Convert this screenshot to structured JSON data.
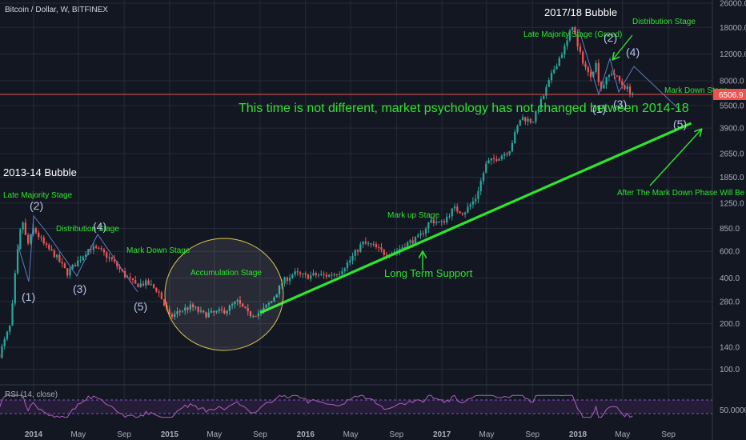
{
  "header": {
    "title": "Bitcoin / Dollar, W, BITFINEX"
  },
  "rsi_label": "RSI (14, close)",
  "chart_data": {
    "type": "candlestick",
    "title": "Bitcoin / Dollar, W, BITFINEX",
    "y_scale": "log",
    "ylim": [
      82,
      26000
    ],
    "y_ticks": [
      {
        "value": 26000,
        "label": "26000.0"
      },
      {
        "value": 18000,
        "label": "18000.0"
      },
      {
        "value": 12000,
        "label": "12000.0"
      },
      {
        "value": 8000,
        "label": "8000.0"
      },
      {
        "value": 5500,
        "label": "5500.0"
      },
      {
        "value": 3900,
        "label": "3900.0"
      },
      {
        "value": 2650,
        "label": "2650.0"
      },
      {
        "value": 1850,
        "label": "1850.0"
      },
      {
        "value": 1250,
        "label": "1250.0"
      },
      {
        "value": 850,
        "label": "850.0"
      },
      {
        "value": 600,
        "label": "600.0"
      },
      {
        "value": 400,
        "label": "400.0"
      },
      {
        "value": 280,
        "label": "280.0"
      },
      {
        "value": 200,
        "label": "200.0"
      },
      {
        "value": 140,
        "label": "140.0"
      },
      {
        "value": 100,
        "label": "100.0"
      }
    ],
    "x_ticks": [
      {
        "date": "2014-01",
        "label": "2014"
      },
      {
        "date": "2014-05",
        "label": "May"
      },
      {
        "date": "2014-09",
        "label": "Sep"
      },
      {
        "date": "2015-01",
        "label": "2015"
      },
      {
        "date": "2015-05",
        "label": "May"
      },
      {
        "date": "2015-09",
        "label": "Sep"
      },
      {
        "date": "2016-01",
        "label": "2016"
      },
      {
        "date": "2016-05",
        "label": "May"
      },
      {
        "date": "2016-09",
        "label": "Sep"
      },
      {
        "date": "2017-01",
        "label": "2017"
      },
      {
        "date": "2017-05",
        "label": "May"
      },
      {
        "date": "2017-09",
        "label": "Sep"
      },
      {
        "date": "2018-01",
        "label": "2018"
      },
      {
        "date": "2018-05",
        "label": "May"
      },
      {
        "date": "2018-09",
        "label": "Sep"
      }
    ],
    "last_price": {
      "value": 6506.9,
      "label": "6506.9",
      "color": "#ef5350"
    },
    "price_path": [
      [
        "2013-10",
        125
      ],
      [
        "2013-11",
        200
      ],
      [
        "2013-11-15",
        500
      ],
      [
        "2013-12",
        1000
      ],
      [
        "2013-12-15",
        650
      ],
      [
        "2014-01",
        850
      ],
      [
        "2014-02",
        650
      ],
      [
        "2014-03",
        560
      ],
      [
        "2014-04",
        430
      ],
      [
        "2014-05",
        520
      ],
      [
        "2014-06",
        640
      ],
      [
        "2014-07",
        600
      ],
      [
        "2014-08",
        520
      ],
      [
        "2014-09",
        420
      ],
      [
        "2014-10",
        360
      ],
      [
        "2014-11",
        370
      ],
      [
        "2014-12",
        330
      ],
      [
        "2015-01",
        220
      ],
      [
        "2015-02",
        245
      ],
      [
        "2015-03",
        260
      ],
      [
        "2015-04",
        230
      ],
      [
        "2015-05",
        235
      ],
      [
        "2015-06",
        245
      ],
      [
        "2015-07",
        280
      ],
      [
        "2015-08",
        230
      ],
      [
        "2015-09",
        236
      ],
      [
        "2015-10",
        280
      ],
      [
        "2015-11",
        380
      ],
      [
        "2015-12",
        430
      ],
      [
        "2016-01",
        410
      ],
      [
        "2016-02",
        420
      ],
      [
        "2016-03",
        415
      ],
      [
        "2016-04",
        440
      ],
      [
        "2016-05",
        530
      ],
      [
        "2016-06",
        680
      ],
      [
        "2016-07",
        650
      ],
      [
        "2016-08",
        580
      ],
      [
        "2016-09",
        605
      ],
      [
        "2016-10",
        680
      ],
      [
        "2016-11",
        740
      ],
      [
        "2016-12",
        960
      ],
      [
        "2017-01",
        920
      ],
      [
        "2017-02",
        1150
      ],
      [
        "2017-03",
        1080
      ],
      [
        "2017-04",
        1340
      ],
      [
        "2017-05",
        2300
      ],
      [
        "2017-06",
        2500
      ],
      [
        "2017-07",
        2800
      ],
      [
        "2017-08",
        4600
      ],
      [
        "2017-09",
        4300
      ],
      [
        "2017-10",
        6400
      ],
      [
        "2017-11",
        10000
      ],
      [
        "2017-12",
        14000
      ],
      [
        "2017-12-18",
        19000
      ],
      [
        "2018-01",
        13000
      ],
      [
        "2018-02",
        8500
      ],
      [
        "2018-02-20",
        10500
      ],
      [
        "2018-03",
        7000
      ],
      [
        "2018-04",
        9200
      ],
      [
        "2018-05",
        7500
      ],
      [
        "2018-06",
        6500
      ]
    ],
    "support_line": {
      "start": [
        "2015-09",
        236
      ],
      "end": [
        "2018-11",
        4200
      ]
    },
    "rsi": {
      "overbought": 70,
      "oversold": 30,
      "value_label": "50.0000"
    },
    "annotations": [
      {
        "text": "2013-14 Bubble"
      },
      {
        "text": "2017/18 Bubble"
      },
      {
        "text": "Late Majority Stage"
      },
      {
        "text": "Distribution Stage"
      },
      {
        "text": "Mark Down Stage"
      },
      {
        "text": "Accumulation Stage"
      },
      {
        "text": "Mark up Stage"
      },
      {
        "text": "Long Term Support"
      },
      {
        "text": "This time is not different, market psychology has not changed between 2014-18"
      },
      {
        "text": "Late Majority Stage (Greed)"
      },
      {
        "text": "Distribution Stage"
      },
      {
        "text": "Mark Down Stage"
      },
      {
        "text": "After The Mark Down Phase Will Be The Accumulation Stage, This Is When Smart Money Starts Buying"
      }
    ],
    "wave_labels": [
      "(1)",
      "(2)",
      "(3)",
      "(4)",
      "(5)"
    ]
  }
}
